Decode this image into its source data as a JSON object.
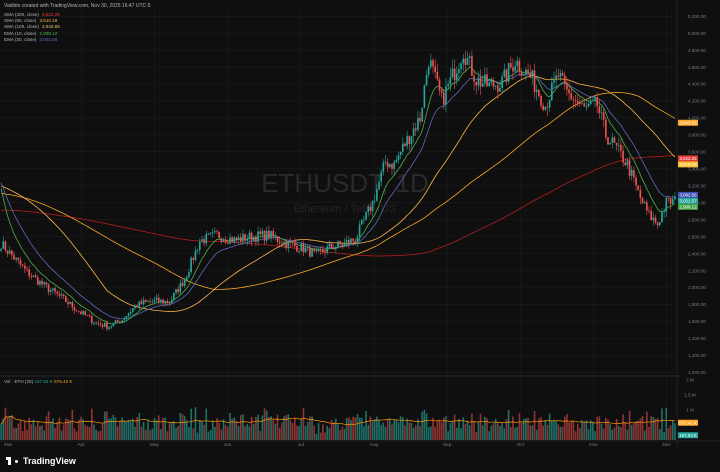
{
  "header": {
    "title": "Valdirie created with TradingView.com, Nov 30, 2025 16:47 UTC-5"
  },
  "watermark": {
    "symbol": "ETHUSDT, 1D",
    "name": "Ethereum / TetherUS"
  },
  "legend": [
    {
      "name": "SMA (200, close)",
      "value": "3,522.25",
      "color": "#e53935"
    },
    {
      "name": "SMA (50, close)",
      "value": "3,510.18",
      "color": "#ffb74d"
    },
    {
      "name": "SMA (100, close)",
      "value": "3,943.65",
      "color": "#f5c26b"
    },
    {
      "name": "EMA (10, close)",
      "value": "2,998.12",
      "color": "#4caf50"
    },
    {
      "name": "EMA (20, close)",
      "value": "3,092.56",
      "color": "#5c6bc0"
    }
  ],
  "volume_legend": {
    "label": "Vol · ETH (20)",
    "value1": "157.53 K",
    "value2": "575.42 K"
  },
  "brand": {
    "name": "TradingView"
  },
  "colors": {
    "up": "#26a69a",
    "down": "#ef5350",
    "bg": "#0f0f0f",
    "grid": "#1c1c1c",
    "axis_text": "#787b86"
  },
  "chart_data": {
    "type": "candlestick",
    "x_labels": [
      "Mar",
      "Apr",
      "May",
      "Jun",
      "Jul",
      "Aug",
      "Sep",
      "Oct",
      "Nov",
      "Dec"
    ],
    "price_ticks": [
      1000,
      1200,
      1400,
      1600,
      1800,
      2000,
      2200,
      2400,
      2600,
      2800,
      3000,
      3200,
      3400,
      3600,
      3800,
      4000,
      4200,
      4400,
      4600,
      4800,
      5000,
      5200
    ],
    "price_range": [
      980,
      5320
    ],
    "price_keypoints": [
      [
        0,
        2520
      ],
      [
        12,
        2180
      ],
      [
        20,
        2020
      ],
      [
        28,
        1880
      ],
      [
        36,
        1720
      ],
      [
        44,
        1580
      ],
      [
        50,
        1540
      ],
      [
        56,
        1620
      ],
      [
        62,
        1780
      ],
      [
        66,
        1820
      ],
      [
        72,
        1840
      ],
      [
        78,
        1830
      ],
      [
        85,
        2100
      ],
      [
        92,
        2550
      ],
      [
        100,
        2620
      ],
      [
        108,
        2560
      ],
      [
        116,
        2600
      ],
      [
        124,
        2620
      ],
      [
        132,
        2520
      ],
      [
        140,
        2460
      ],
      [
        146,
        2380
      ],
      [
        152,
        2470
      ],
      [
        158,
        2510
      ],
      [
        164,
        2570
      ],
      [
        172,
        3000
      ],
      [
        178,
        3480
      ],
      [
        182,
        3450
      ],
      [
        186,
        3650
      ],
      [
        194,
        4000
      ],
      [
        198,
        4700
      ],
      [
        204,
        4200
      ],
      [
        210,
        4550
      ],
      [
        214,
        4800
      ],
      [
        220,
        4450
      ],
      [
        226,
        4380
      ],
      [
        232,
        4420
      ],
      [
        238,
        4680
      ],
      [
        246,
        4450
      ],
      [
        252,
        4150
      ],
      [
        258,
        4500
      ],
      [
        262,
        4300
      ],
      [
        266,
        4200
      ],
      [
        270,
        4100
      ],
      [
        276,
        4150
      ],
      [
        280,
        3800
      ],
      [
        286,
        3600
      ],
      [
        290,
        3450
      ],
      [
        296,
        3050
      ],
      [
        300,
        2850
      ],
      [
        304,
        2750
      ],
      [
        308,
        3000
      ],
      [
        312,
        3020
      ]
    ],
    "volume_ticks": [
      "2 M",
      "1.5 M",
      "1 M"
    ],
    "volume_range": [
      0,
      2000000
    ],
    "price_labels": [
      {
        "text": "3,943.65",
        "value": 3943.65,
        "color": "#ffa726"
      },
      {
        "text": "3,522.25",
        "value": 3522.25,
        "color": "#e53935"
      },
      {
        "text": "3,510.18",
        "value": 3510.18,
        "color": "#fbc02d"
      },
      {
        "text": "3,092.56",
        "value": 3092.56,
        "color": "#3f51b5"
      },
      {
        "text": "3,021.57",
        "value": 3021.57,
        "color": "#26a69a"
      },
      {
        "text": "2,998.12",
        "value": 2998.12,
        "color": "#43a047"
      }
    ],
    "volume_labels": [
      {
        "text": "575.42 K",
        "value": 575420,
        "color": "#ffa726"
      },
      {
        "text": "157.53 K",
        "value": 157530,
        "color": "#26a69a"
      }
    ]
  }
}
